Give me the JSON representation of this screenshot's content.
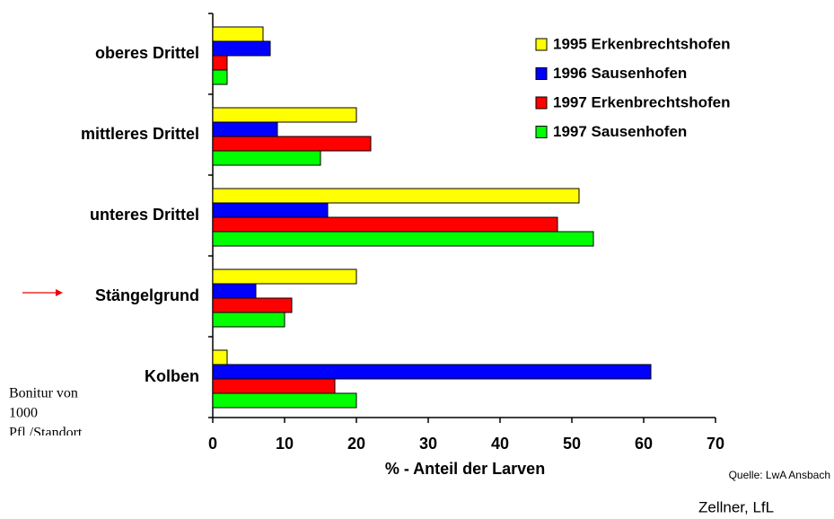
{
  "chart_data": {
    "type": "barh",
    "categories": [
      "oberes Drittel",
      "mittleres Drittel",
      "unteres Drittel",
      "Stängelgrund",
      "Kolben"
    ],
    "series": [
      {
        "name": "1995 Erkenbrechtshofen",
        "color": "#ffff00",
        "values": [
          7,
          20,
          51,
          20,
          2
        ]
      },
      {
        "name": "1996 Sausenhofen",
        "color": "#0000ff",
        "values": [
          8,
          9,
          16,
          6,
          61
        ]
      },
      {
        "name": "1997 Erkenbrechtshofen",
        "color": "#ff0000",
        "values": [
          2,
          22,
          48,
          11,
          17
        ]
      },
      {
        "name": "1997 Sausenhofen",
        "color": "#00ff00",
        "values": [
          2,
          15,
          53,
          10,
          20
        ]
      }
    ],
    "xlabel": "% - Anteil der Larven",
    "xlim": [
      0,
      70
    ],
    "xticks": [
      0,
      10,
      20,
      30,
      40,
      50,
      60,
      70
    ],
    "grid": false,
    "legend": "upper right",
    "annotations": [
      "Bonitur von",
      "1000",
      "Pfl /Standort",
      "Quelle: LwA Ansbach",
      "Zellner, LfL"
    ]
  }
}
